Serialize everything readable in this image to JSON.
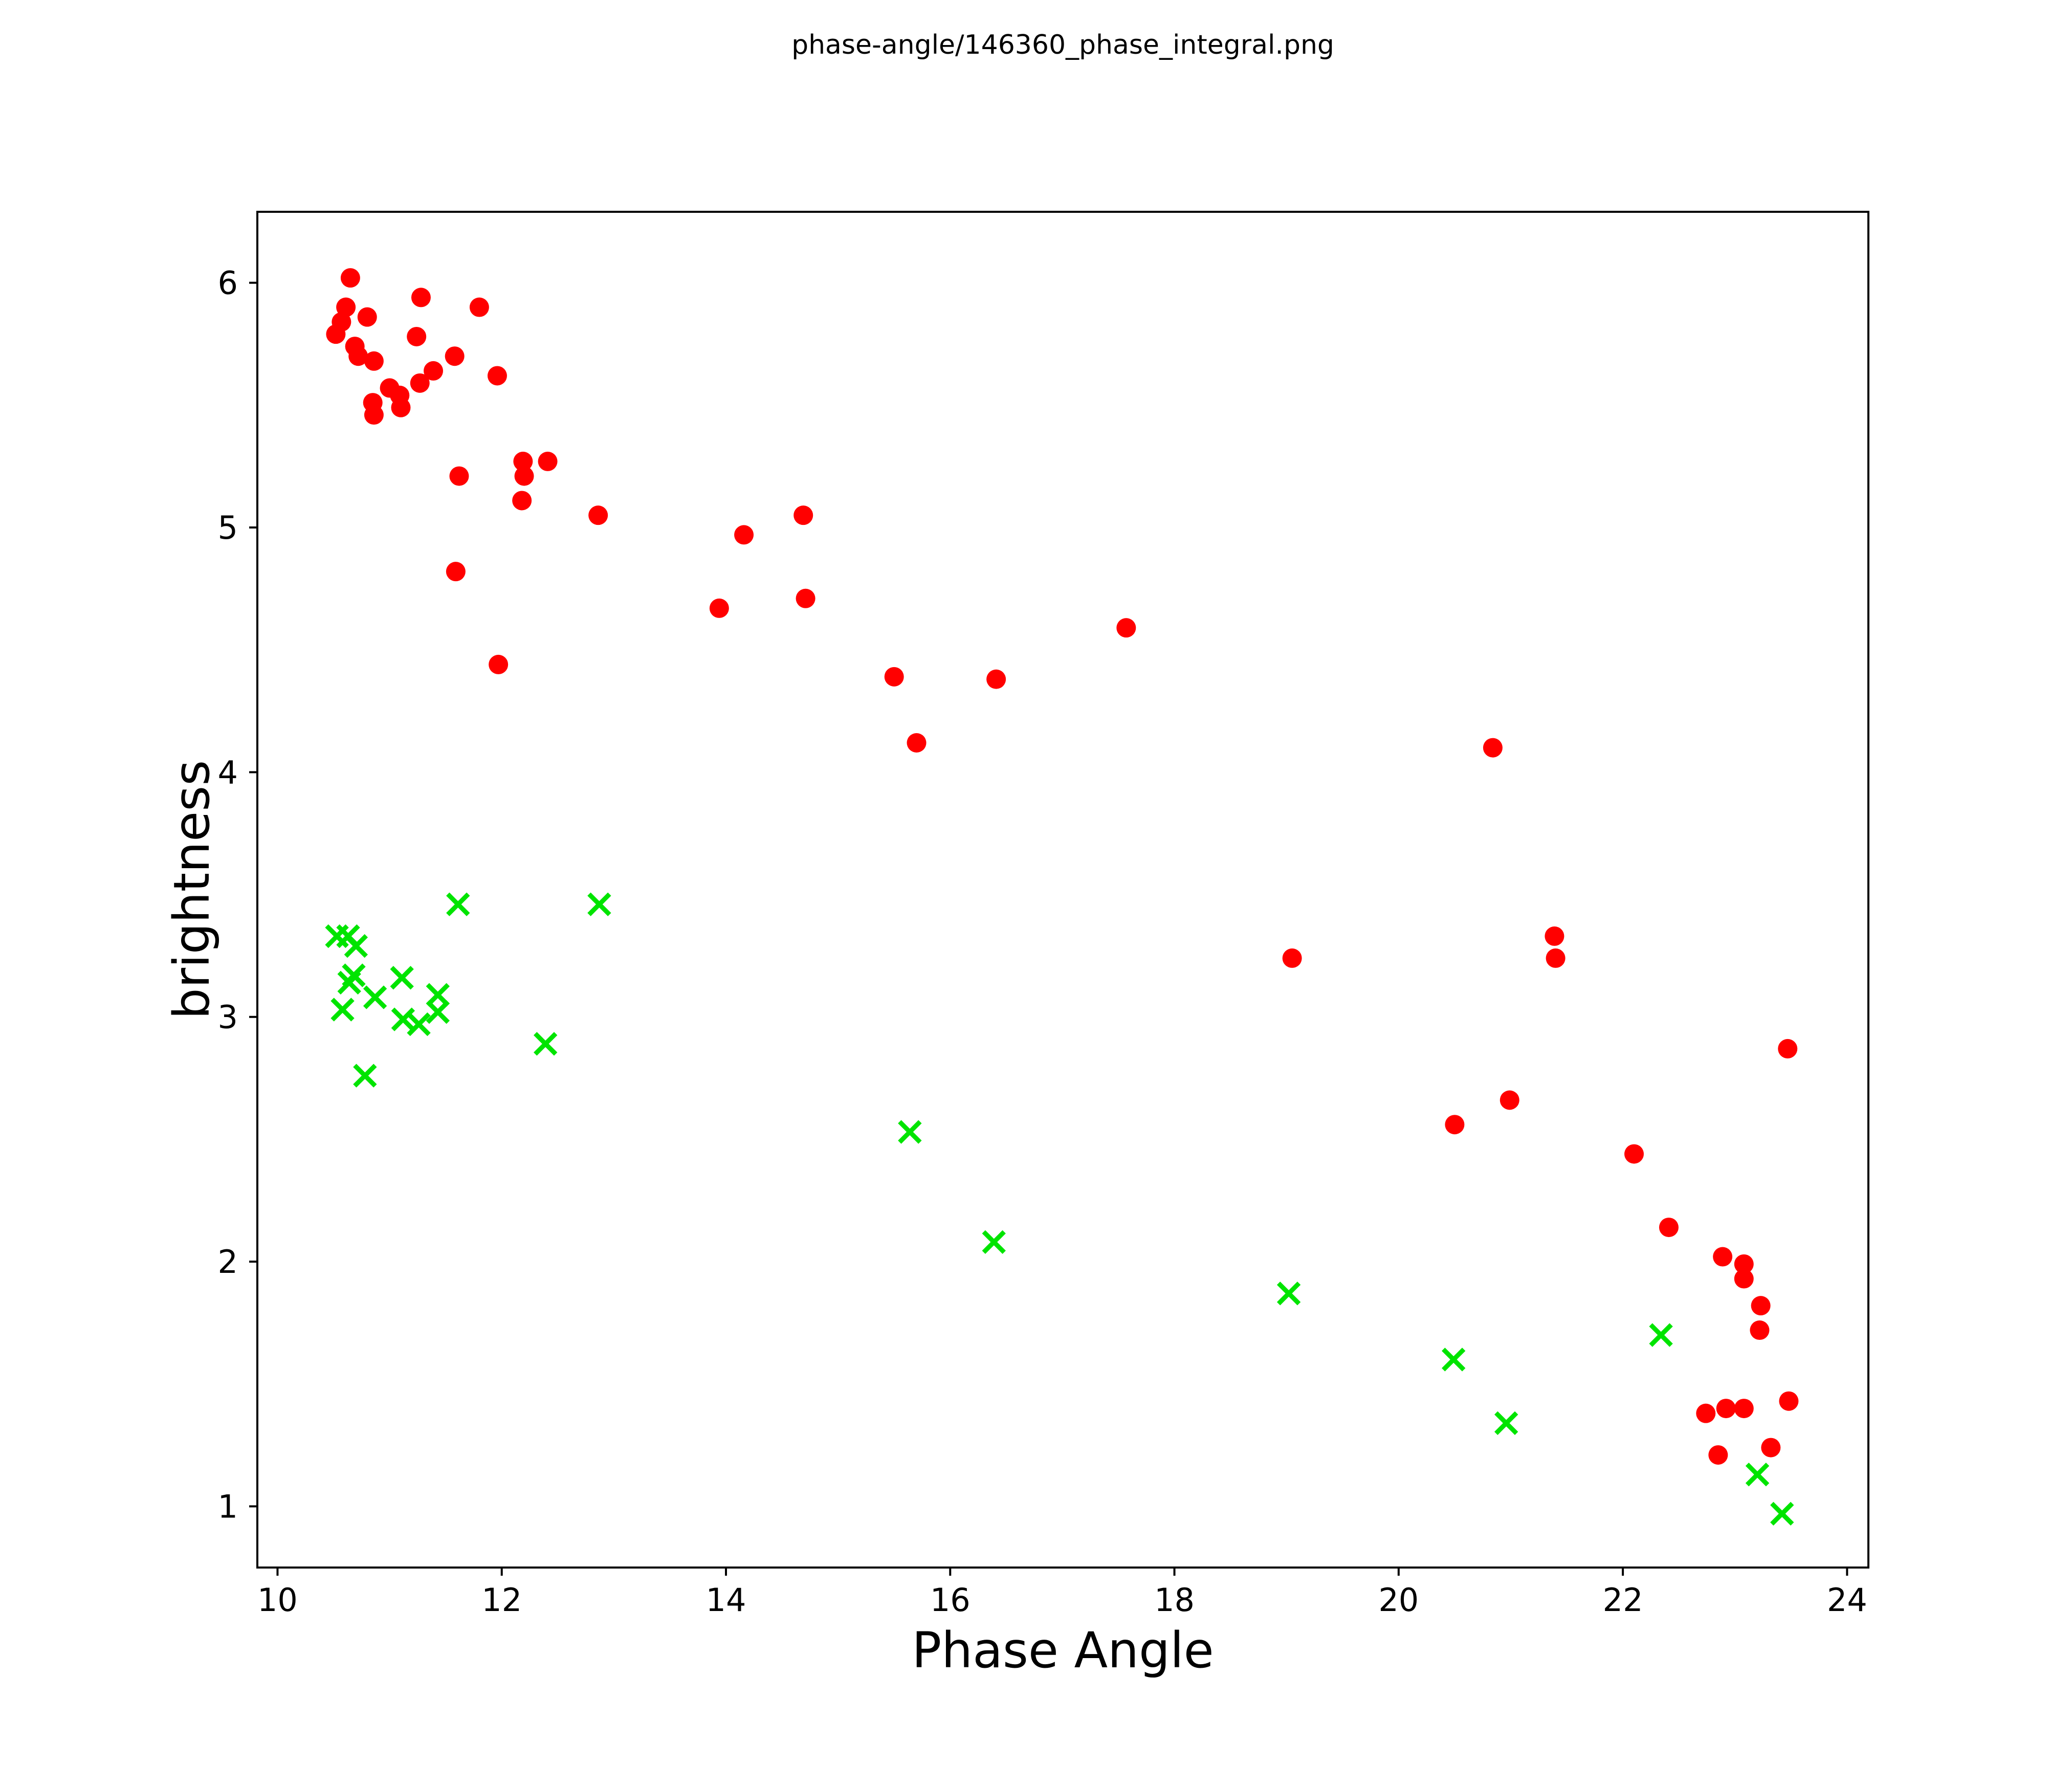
{
  "figure": {
    "title": "phase-angle/146360_phase_integral.png"
  },
  "chart_data": {
    "type": "scatter",
    "title": "phase-angle/146360_phase_integral.png",
    "xlabel": "Phase Angle",
    "ylabel": "brightness",
    "xlim": [
      9.82,
      24.19
    ],
    "ylim": [
      0.75,
      6.29
    ],
    "xticks": [
      10,
      12,
      14,
      16,
      18,
      20,
      22,
      24
    ],
    "yticks": [
      1,
      2,
      3,
      4,
      5,
      6
    ],
    "grid": false,
    "legend_position": "none",
    "axis_color": "#000000",
    "background_color": "#ffffff",
    "series": [
      {
        "name": "filled-circle-series",
        "marker": "circle",
        "color": "#ff0000",
        "marker_diameter_px": 38,
        "points": [
          [
            10.65,
            6.02
          ],
          [
            10.61,
            5.9
          ],
          [
            10.57,
            5.84
          ],
          [
            10.52,
            5.79
          ],
          [
            10.8,
            5.86
          ],
          [
            11.28,
            5.94
          ],
          [
            11.8,
            5.9
          ],
          [
            10.69,
            5.74
          ],
          [
            10.72,
            5.7
          ],
          [
            10.86,
            5.68
          ],
          [
            11.24,
            5.78
          ],
          [
            11.58,
            5.7
          ],
          [
            11.39,
            5.64
          ],
          [
            11.27,
            5.59
          ],
          [
            11.0,
            5.57
          ],
          [
            11.09,
            5.54
          ],
          [
            11.1,
            5.49
          ],
          [
            10.85,
            5.51
          ],
          [
            10.86,
            5.46
          ],
          [
            11.96,
            5.62
          ],
          [
            11.62,
            5.21
          ],
          [
            12.19,
            5.27
          ],
          [
            12.2,
            5.21
          ],
          [
            12.41,
            5.27
          ],
          [
            12.18,
            5.11
          ],
          [
            12.86,
            5.05
          ],
          [
            11.59,
            4.82
          ],
          [
            11.97,
            4.44
          ],
          [
            14.16,
            4.97
          ],
          [
            14.69,
            5.05
          ],
          [
            13.94,
            4.67
          ],
          [
            14.71,
            4.71
          ],
          [
            15.5,
            4.39
          ],
          [
            16.41,
            4.38
          ],
          [
            15.7,
            4.12
          ],
          [
            17.57,
            4.59
          ],
          [
            20.84,
            4.1
          ],
          [
            19.05,
            3.24
          ],
          [
            21.39,
            3.33
          ],
          [
            21.4,
            3.24
          ],
          [
            20.5,
            2.56
          ],
          [
            20.99,
            2.66
          ],
          [
            23.47,
            2.87
          ],
          [
            22.1,
            2.44
          ],
          [
            22.41,
            2.14
          ],
          [
            22.89,
            2.02
          ],
          [
            23.08,
            1.99
          ],
          [
            23.08,
            1.93
          ],
          [
            23.23,
            1.82
          ],
          [
            23.22,
            1.72
          ],
          [
            22.74,
            1.38
          ],
          [
            22.92,
            1.4
          ],
          [
            23.08,
            1.4
          ],
          [
            23.48,
            1.43
          ],
          [
            23.32,
            1.24
          ],
          [
            22.85,
            1.21
          ]
        ]
      },
      {
        "name": "x-marker-series",
        "marker": "x",
        "color": "#00e400",
        "marker_diameter_px": 40,
        "points": [
          [
            11.61,
            3.46
          ],
          [
            12.87,
            3.46
          ],
          [
            10.53,
            3.33
          ],
          [
            10.63,
            3.33
          ],
          [
            10.7,
            3.29
          ],
          [
            10.68,
            3.17
          ],
          [
            10.64,
            3.14
          ],
          [
            11.11,
            3.16
          ],
          [
            10.87,
            3.08
          ],
          [
            10.58,
            3.03
          ],
          [
            11.43,
            3.09
          ],
          [
            11.43,
            3.02
          ],
          [
            11.12,
            2.99
          ],
          [
            11.26,
            2.97
          ],
          [
            12.39,
            2.89
          ],
          [
            10.78,
            2.76
          ],
          [
            15.64,
            2.53
          ],
          [
            16.39,
            2.08
          ],
          [
            19.02,
            1.87
          ],
          [
            20.49,
            1.6
          ],
          [
            20.96,
            1.34
          ],
          [
            22.34,
            1.7
          ],
          [
            23.2,
            1.13
          ],
          [
            23.42,
            0.97
          ]
        ]
      }
    ]
  }
}
